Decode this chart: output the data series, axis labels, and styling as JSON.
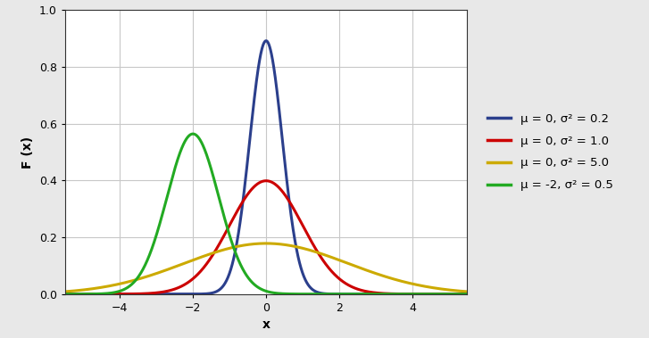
{
  "distributions": [
    {
      "mu": 0,
      "sigma2": 0.2,
      "color": "#2b3f8c",
      "linewidth": 2.2,
      "label": "μ = 0, σ² = 0.2"
    },
    {
      "mu": 0,
      "sigma2": 1.0,
      "color": "#cc0000",
      "linewidth": 2.2,
      "label": "μ = 0, σ² = 1.0"
    },
    {
      "mu": 0,
      "sigma2": 5.0,
      "color": "#ccaa00",
      "linewidth": 2.2,
      "label": "μ = 0, σ² = 5.0"
    },
    {
      "mu": -2,
      "sigma2": 0.5,
      "color": "#22aa22",
      "linewidth": 2.2,
      "label": "μ = -2, σ² = 0.5"
    }
  ],
  "xlim": [
    -5.5,
    5.5
  ],
  "ylim": [
    0.0,
    1.0
  ],
  "xlabel": "x",
  "ylabel": "F (x)",
  "xticks": [
    -4,
    -2,
    0,
    2,
    4
  ],
  "yticks": [
    0.0,
    0.2,
    0.4,
    0.6,
    0.8,
    1.0
  ],
  "plot_bg_color": "#ffffff",
  "fig_bg_color": "#e8e8e8",
  "grid_color": "#c8c8c8",
  "spine_color": "#333333",
  "legend_fontsize": 9.5,
  "axis_label_fontsize": 10,
  "tick_fontsize": 9
}
